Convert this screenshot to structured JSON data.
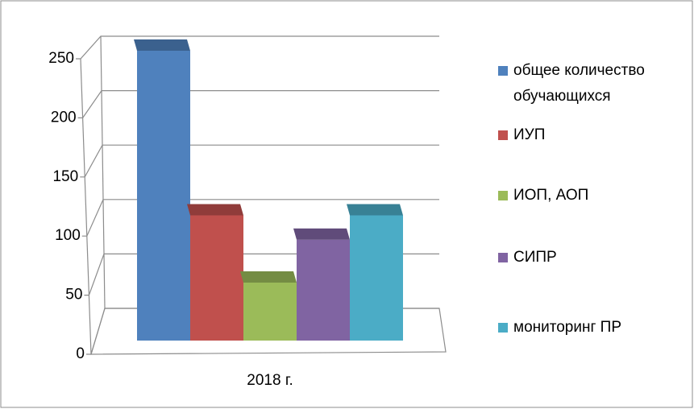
{
  "chart_data": {
    "type": "bar3d",
    "categories": [
      "2018 г."
    ],
    "series": [
      {
        "name": "общее количество обучающихся",
        "color": "#4f81bd",
        "values": [
          250
        ]
      },
      {
        "name": "ИУП",
        "color": "#c0504d",
        "values": [
          108
        ]
      },
      {
        "name": "ИОП, АОП",
        "color": "#9bbb59",
        "values": [
          50
        ]
      },
      {
        "name": "СИПР",
        "color": "#8064a2",
        "values": [
          87
        ]
      },
      {
        "name": "мониторинг ПР",
        "color": "#4bacc6",
        "values": [
          108
        ]
      }
    ],
    "ylim": [
      0,
      250
    ],
    "yticks": [
      0,
      50,
      100,
      150,
      200,
      250
    ],
    "grid": true,
    "legend": "right"
  }
}
